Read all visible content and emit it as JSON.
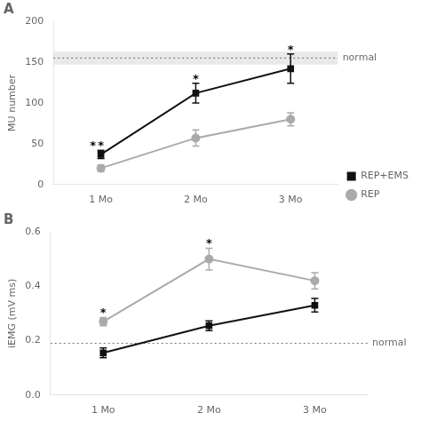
{
  "chart_data": [
    {
      "type": "line",
      "title": "A",
      "categories": [
        "1 Mo",
        "2 Mo",
        "3 Mo"
      ],
      "series": [
        {
          "name": "REP+EMS",
          "color": "#111111",
          "marker": "square",
          "values": [
            37,
            112,
            142
          ],
          "errors": [
            5,
            12,
            18
          ]
        },
        {
          "name": "REP",
          "color": "#aaaaaa",
          "marker": "circle",
          "values": [
            20,
            57,
            80
          ],
          "errors": [
            4,
            10,
            8
          ]
        }
      ],
      "ylabel": "MU number",
      "ylim": [
        0,
        200
      ],
      "yticks": [
        0,
        50,
        100,
        150,
        200
      ],
      "grid": false,
      "legend": "right",
      "reference_line": {
        "value": 155,
        "label": "normal"
      },
      "reference_band": [
        147,
        163
      ],
      "annotations": [
        {
          "text": "*",
          "x": "1 Mo",
          "series": "REP+EMS"
        },
        {
          "text": "*",
          "x": "2 Mo",
          "series": "REP+EMS"
        },
        {
          "text": "*",
          "x": "3 Mo",
          "series": "REP+EMS"
        },
        {
          "text": "*",
          "x": "1 Mo",
          "series": "REP"
        }
      ]
    },
    {
      "type": "line",
      "title": "B",
      "categories": [
        "1 Mo",
        "2 Mo",
        "3 Mo"
      ],
      "series": [
        {
          "name": "REP+EMS",
          "color": "#111111",
          "marker": "square",
          "values": [
            0.155,
            0.255,
            0.33
          ],
          "errors": [
            0.018,
            0.018,
            0.025
          ]
        },
        {
          "name": "REP",
          "color": "#aaaaaa",
          "marker": "circle",
          "values": [
            0.27,
            0.5,
            0.42
          ],
          "errors": [
            0.015,
            0.04,
            0.03
          ]
        }
      ],
      "ylabel": "iEMG (mV ms)",
      "ylim": [
        0.0,
        0.6
      ],
      "yticks": [
        {
          "value": 0.0,
          "label": "0.0"
        },
        0.2,
        0.4,
        0.6
      ],
      "grid": false,
      "reference_line": {
        "value": 0.19,
        "label": "normal"
      },
      "annotations": [
        {
          "text": "*",
          "x": "1 Mo",
          "series": "REP"
        },
        {
          "text": "*",
          "x": "2 Mo",
          "series": "REP"
        }
      ]
    }
  ]
}
